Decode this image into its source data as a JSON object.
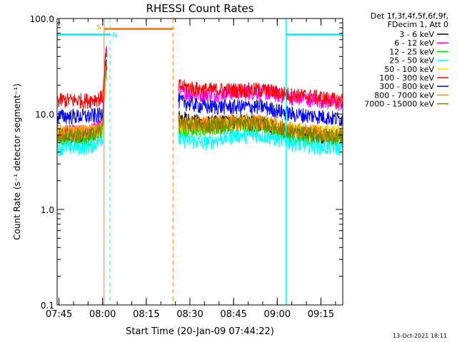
{
  "chart_data": {
    "type": "line",
    "title": "RHESSI Count Rates",
    "xlabel": "Start Time (20-Jan-09 07:44:22)",
    "ylabel": "Count Rate (s⁻¹ detector segment⁻¹)",
    "yscale": "log",
    "ylim": [
      0.1,
      100
    ],
    "xlim": [
      "07:44:22",
      "09:22:30"
    ],
    "x_ticks": [
      "07:45",
      "08:00",
      "08:15",
      "08:30",
      "08:45",
      "09:00",
      "09:15"
    ],
    "y_ticks": [
      "0.1",
      "1.0",
      "10.0",
      "100.0"
    ],
    "grid": false,
    "legend_position": "right",
    "legend_header": [
      "Det 1f,3f,4f,5f,6f,9f,",
      "FDecim 1, Att 0"
    ],
    "series": [
      {
        "name": "3 - 6 keV",
        "color": "#000000",
        "x": [
          "07:45",
          "07:55",
          "08:00",
          "08:01",
          "08:25",
          "08:35",
          "08:45",
          "08:55",
          "09:05",
          "09:15",
          "09:20"
        ],
        "values": [
          6.0,
          6.0,
          7.0,
          35,
          9.5,
          8.0,
          8.5,
          8.0,
          6.5,
          6.0,
          6.0
        ]
      },
      {
        "name": "6 - 12 keV",
        "color": "#ff00ff",
        "x": [
          "07:45",
          "07:55",
          "08:00",
          "08:01",
          "08:25",
          "08:35",
          "08:45",
          "08:55",
          "09:05",
          "09:15",
          "09:20"
        ],
        "values": [
          6.5,
          6.5,
          8.0,
          45,
          17,
          16,
          17,
          17,
          15,
          14,
          13
        ]
      },
      {
        "name": "12 - 25 keV",
        "color": "#00dd00",
        "x": [
          "07:45",
          "07:55",
          "08:00",
          "08:01",
          "08:25",
          "08:35",
          "08:45",
          "08:55",
          "09:05",
          "09:15",
          "09:20"
        ],
        "values": [
          5.5,
          5.5,
          6.5,
          30,
          7.0,
          7.0,
          7.5,
          7.0,
          6.0,
          5.5,
          5.5
        ]
      },
      {
        "name": "25 - 50 keV",
        "color": "#00ffff",
        "x": [
          "07:45",
          "07:55",
          "08:00",
          "08:01",
          "08:25",
          "08:35",
          "08:45",
          "08:55",
          "09:05",
          "09:15",
          "09:20"
        ],
        "values": [
          4.5,
          4.5,
          5.5,
          25,
          5.5,
          5.0,
          6.0,
          6.0,
          5.0,
          4.5,
          4.5
        ]
      },
      {
        "name": "50 - 100 keV",
        "color": "#ffdd00",
        "x": [
          "07:45",
          "07:55",
          "08:00",
          "08:01",
          "08:25",
          "08:35",
          "08:45",
          "08:55",
          "09:05",
          "09:15",
          "09:20"
        ],
        "values": [
          6.5,
          6.5,
          7.0,
          28,
          7.5,
          7.5,
          8.0,
          8.0,
          7.0,
          6.5,
          6.5
        ]
      },
      {
        "name": "100 - 300 keV",
        "color": "#ff0000",
        "x": [
          "07:45",
          "07:55",
          "08:00",
          "08:01",
          "08:25",
          "08:35",
          "08:45",
          "08:55",
          "09:05",
          "09:15",
          "09:20"
        ],
        "values": [
          14,
          14,
          15,
          40,
          20,
          18,
          18,
          18,
          16,
          15,
          14
        ]
      },
      {
        "name": "300 - 800 keV",
        "color": "#0000ff",
        "x": [
          "07:45",
          "07:55",
          "08:00",
          "08:01",
          "08:25",
          "08:35",
          "08:45",
          "08:55",
          "09:05",
          "09:15",
          "09:20"
        ],
        "values": [
          9.5,
          9.5,
          10,
          32,
          14,
          12,
          12,
          12,
          10,
          9.5,
          9.0
        ]
      },
      {
        "name": "800 - 7000 keV",
        "color": "#ff8800",
        "x": [
          "07:45",
          "07:55",
          "08:00",
          "08:01",
          "08:25",
          "08:35",
          "08:45",
          "08:55",
          "09:05",
          "09:15",
          "09:20"
        ],
        "values": [
          6.5,
          6.5,
          7.5,
          30,
          8.5,
          8.0,
          8.5,
          8.5,
          7.0,
          6.5,
          6.0
        ]
      },
      {
        "name": "7000 - 15000 keV",
        "color": "#808000",
        "x": [
          "07:45",
          "07:55",
          "08:00",
          "08:01",
          "08:25",
          "08:35",
          "08:45",
          "08:55",
          "09:05",
          "09:15",
          "09:20"
        ],
        "values": [
          6.0,
          6.0,
          7.0,
          30,
          8.0,
          7.5,
          8.0,
          8.0,
          6.5,
          6.0,
          6.0
        ]
      }
    ],
    "annotations": [
      {
        "type": "bar",
        "label": "S",
        "color": "#ff8800",
        "x_start": "08:00:30",
        "x_end": "08:24:10",
        "y": 78
      },
      {
        "type": "bar",
        "label": "N",
        "color": "#00ffff",
        "x_start": "07:44:22",
        "x_end": "08:02:30",
        "y": 68
      },
      {
        "type": "bar",
        "color": "#00ffff",
        "x_start": "09:03:00",
        "x_end": "09:22:30",
        "y": 68
      },
      {
        "type": "vline",
        "style": "solid",
        "color": "#00ffff",
        "x": "07:44:22"
      },
      {
        "type": "vline",
        "style": "solid",
        "color": "#ff8800",
        "x": "08:00:30"
      },
      {
        "type": "vline",
        "style": "dashed",
        "color": "#00ffff",
        "x": "08:02:30"
      },
      {
        "type": "vline",
        "style": "dashed",
        "color": "#ff8800",
        "x": "08:24:10"
      },
      {
        "type": "vline",
        "style": "solid",
        "color": "#00ffff",
        "x": "09:03:00"
      },
      {
        "type": "vline",
        "style": "dashed",
        "color": "#00ffff",
        "x": "09:22:30"
      }
    ],
    "data_gaps": [
      {
        "start": "08:01:30",
        "end": "08:26:00"
      }
    ]
  },
  "timestamp": "13-Oct-2021 18:11"
}
